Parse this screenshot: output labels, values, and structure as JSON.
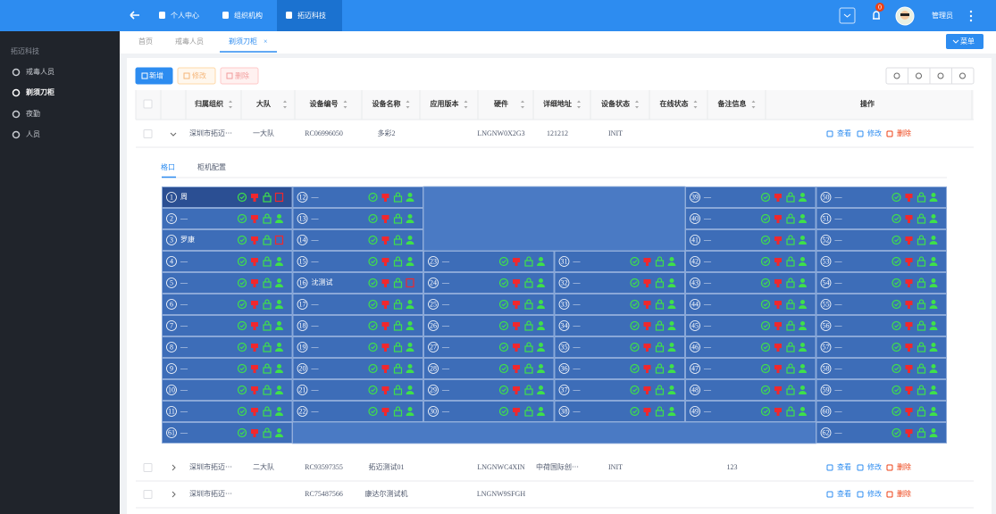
{
  "header": {
    "nav": [
      "个人中心",
      "组织机构",
      "拓迈科技"
    ],
    "badge": "0",
    "user": "管理员"
  },
  "sidebar": {
    "section": "拓迈科技",
    "items": [
      "戒毒人员",
      "剃须刀柜",
      "夜勤",
      "人员"
    ]
  },
  "tabs": [
    "首页",
    "戒毒人员",
    "剃须刀柜"
  ],
  "menu_button": "菜单",
  "toolbar": [
    "新增",
    "修改",
    "删除"
  ],
  "table": {
    "columns": [
      "归属组织",
      "大队",
      "设备编号",
      "设备名称",
      "应用版本",
      "硬件",
      "详细地址",
      "设备状态",
      "在线状态",
      "备注信息",
      "操作"
    ],
    "actions": [
      "查看",
      "修改",
      "删除"
    ],
    "rows": [
      [
        "深圳市拓迈⋯",
        "一大队",
        "RC06996050",
        "多彩2",
        null,
        "LNGNW0X2G3",
        "121212",
        "INIT",
        null,
        null
      ],
      [
        "深圳市拓迈⋯",
        "二大队",
        "RC93597355",
        "拓迈测试01",
        null,
        "LNGNWC4XIN",
        "中荷国际创⋯",
        "INIT",
        null,
        "123"
      ],
      [
        "深圳市拓迈⋯",
        null,
        "RC75487566",
        "康达尔测试机",
        null,
        "LNGNW9SFGH",
        null,
        null,
        null,
        null
      ]
    ]
  },
  "detail": {
    "tabs": [
      "格口",
      "柜机配置"
    ],
    "columns": [
      [
        {
          "no": 1,
          "name": "周",
          "alert": true,
          "selected": true
        },
        {
          "no": 2,
          "name": "—"
        },
        {
          "no": 3,
          "name": "罗康",
          "alert": true
        },
        {
          "no": 4,
          "name": "—"
        },
        {
          "no": 5,
          "name": "—"
        },
        {
          "no": 6,
          "name": "—"
        },
        {
          "no": 7,
          "name": "—"
        },
        {
          "no": 8,
          "name": "—"
        },
        {
          "no": 9,
          "name": "—"
        },
        {
          "no": 10,
          "name": "—"
        },
        {
          "no": 11,
          "name": "—"
        },
        {
          "no": 61,
          "name": "—"
        }
      ],
      [
        {
          "no": 12,
          "name": "—"
        },
        {
          "no": 13,
          "name": "—"
        },
        {
          "no": 14,
          "name": "—"
        },
        {
          "no": 15,
          "name": "—"
        },
        {
          "no": 16,
          "name": "沈测试",
          "alert": true
        },
        {
          "no": 17,
          "name": "—"
        },
        {
          "no": 18,
          "name": "—"
        },
        {
          "no": 19,
          "name": "—"
        },
        {
          "no": 20,
          "name": "—"
        },
        {
          "no": 21,
          "name": "—"
        },
        {
          "no": 22,
          "name": "—"
        }
      ],
      [
        {
          "no": 23,
          "name": "—"
        },
        {
          "no": 24,
          "name": "—"
        },
        {
          "no": 25,
          "name": "—"
        },
        {
          "no": 26,
          "name": "—"
        },
        {
          "no": 27,
          "name": "—"
        },
        {
          "no": 28,
          "name": "—"
        },
        {
          "no": 29,
          "name": "—"
        },
        {
          "no": 30,
          "name": "—"
        }
      ],
      [
        {
          "no": 31,
          "name": "—"
        },
        {
          "no": 32,
          "name": "—"
        },
        {
          "no": 33,
          "name": "—"
        },
        {
          "no": 34,
          "name": "—"
        },
        {
          "no": 35,
          "name": "—"
        },
        {
          "no": 36,
          "name": "—"
        },
        {
          "no": 37,
          "name": "—"
        },
        {
          "no": 38,
          "name": "—"
        }
      ],
      [
        {
          "no": 39,
          "name": "—"
        },
        {
          "no": 40,
          "name": "—"
        },
        {
          "no": 41,
          "name": "—"
        },
        {
          "no": 42,
          "name": "—"
        },
        {
          "no": 43,
          "name": "—"
        },
        {
          "no": 44,
          "name": "—"
        },
        {
          "no": 45,
          "name": "—"
        },
        {
          "no": 46,
          "name": "—"
        },
        {
          "no": 47,
          "name": "—"
        },
        {
          "no": 48,
          "name": "—"
        },
        {
          "no": 49,
          "name": "—"
        }
      ],
      [
        {
          "no": 50,
          "name": "—"
        },
        {
          "no": 51,
          "name": "—"
        },
        {
          "no": 52,
          "name": "—"
        },
        {
          "no": 53,
          "name": "—"
        },
        {
          "no": 54,
          "name": "—"
        },
        {
          "no": 55,
          "name": "—"
        },
        {
          "no": 56,
          "name": "—"
        },
        {
          "no": 57,
          "name": "—"
        },
        {
          "no": 58,
          "name": "—"
        },
        {
          "no": 59,
          "name": "—"
        },
        {
          "no": 60,
          "name": "—"
        },
        {
          "no": 62,
          "name": "—"
        }
      ]
    ]
  }
}
